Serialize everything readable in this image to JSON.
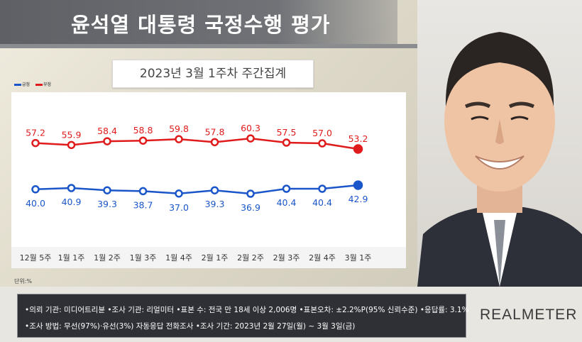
{
  "title": "윤석열 대통령 국정수행 평가",
  "subtitle": "2023년 3월 1주차 주간집계",
  "legend": {
    "approve": "긍정",
    "disapprove": "부정"
  },
  "unit_label": "단위:%",
  "colors": {
    "approve": "#1a56c9",
    "disapprove": "#e01b1b",
    "title_bar": "#5e6065"
  },
  "chart_data": {
    "type": "line",
    "categories": [
      "12월 5주",
      "1월 1주",
      "1월 2주",
      "1월 3주",
      "1월 4주",
      "2월 1주",
      "2월 2주",
      "2월 3주",
      "2월 4주",
      "3월 1주"
    ],
    "series": [
      {
        "name": "부정",
        "values": [
          57.2,
          55.9,
          58.4,
          58.8,
          59.8,
          57.8,
          60.3,
          57.5,
          57.0,
          53.2
        ]
      },
      {
        "name": "긍정",
        "values": [
          40.0,
          40.9,
          39.3,
          38.7,
          37.0,
          39.3,
          36.9,
          40.4,
          40.4,
          42.9
        ]
      }
    ],
    "title": "윤석열 대통령 국정수행 평가",
    "subtitle": "2023년 3월 1주차 주간집계",
    "grid": false,
    "legend_position": "top-left"
  },
  "info": {
    "line1": "•의뢰 기관: 미디어트리뷴 •조사 기관: 리얼미터 •표본 수: 전국 만 18세 이상 2,006명 •표본오차: ±2.2%P(95% 신뢰수준) •응답률: 3.1%",
    "line2": "•조사 방법: 무선(97%)·유선(3%) 자동응답 전화조사 •조사 기간: 2023년 2월 27일(월) ~ 3월 3일(금)"
  },
  "logo": "REALMETER"
}
